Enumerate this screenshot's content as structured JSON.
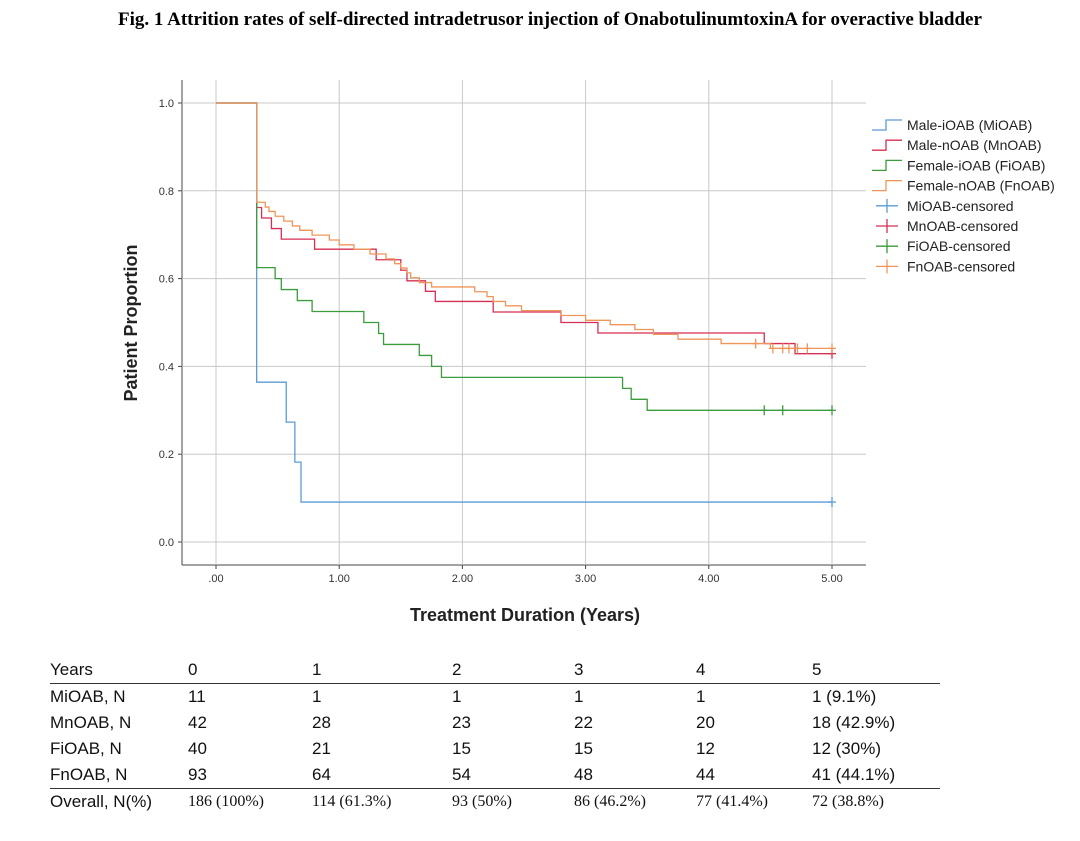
{
  "figure": {
    "title": "Fig. 1 Attrition rates of self-directed intradetrusor injection of OnabotulinumtoxinA for overactive bladder"
  },
  "chart_data": {
    "type": "line",
    "step": true,
    "title": "Fig. 1 Attrition rates of self-directed intradetrusor injection of OnabotulinumtoxinA for overactive bladder",
    "xlabel": "Treatment Duration (Years)",
    "ylabel": "Patient Proportion",
    "xlim": [
      0,
      5
    ],
    "ylim": [
      0,
      1
    ],
    "x_ticks": [
      0,
      1,
      2,
      3,
      4,
      5
    ],
    "x_tick_labels": [
      ".00",
      "1.00",
      "2.00",
      "3.00",
      "4.00",
      "5.00"
    ],
    "y_ticks": [
      0,
      0.2,
      0.4,
      0.6,
      0.8,
      1.0
    ],
    "y_tick_labels": [
      "0.0",
      "0.2",
      "0.4",
      "0.6",
      "0.8",
      "1.0"
    ],
    "grid": true,
    "legend_position": "right",
    "series": [
      {
        "name": "Male-iOAB (MiOAB)",
        "color": "#5b9bd5",
        "censor_label": "MiOAB-censored",
        "points": [
          [
            0,
            1.0
          ],
          [
            0.33,
            0.364
          ],
          [
            0.57,
            0.273
          ],
          [
            0.64,
            0.182
          ],
          [
            0.69,
            0.091
          ],
          [
            5.0,
            0.091
          ]
        ],
        "censored": [
          [
            5.0,
            0.091
          ]
        ]
      },
      {
        "name": "Male-nOAB (MnOAB)",
        "color": "#d62f55",
        "censor_label": "MnOAB-censored",
        "points": [
          [
            0,
            1.0
          ],
          [
            0.33,
            0.762
          ],
          [
            0.37,
            0.738
          ],
          [
            0.45,
            0.714
          ],
          [
            0.53,
            0.69
          ],
          [
            0.8,
            0.667
          ],
          [
            1.3,
            0.643
          ],
          [
            1.5,
            0.619
          ],
          [
            1.55,
            0.595
          ],
          [
            1.7,
            0.571
          ],
          [
            1.78,
            0.548
          ],
          [
            2.25,
            0.524
          ],
          [
            2.8,
            0.5
          ],
          [
            3.1,
            0.476
          ],
          [
            4.45,
            0.452
          ],
          [
            4.7,
            0.429
          ],
          [
            5.0,
            0.429
          ]
        ],
        "censored": [
          [
            5.0,
            0.429
          ]
        ]
      },
      {
        "name": "Female-iOAB (FiOAB)",
        "color": "#3a9c3a",
        "censor_label": "FiOAB-censored",
        "points": [
          [
            0,
            1.0
          ],
          [
            0.33,
            0.625
          ],
          [
            0.48,
            0.6
          ],
          [
            0.53,
            0.575
          ],
          [
            0.66,
            0.55
          ],
          [
            0.78,
            0.525
          ],
          [
            1.2,
            0.5
          ],
          [
            1.32,
            0.475
          ],
          [
            1.36,
            0.45
          ],
          [
            1.65,
            0.425
          ],
          [
            1.75,
            0.4
          ],
          [
            1.83,
            0.375
          ],
          [
            3.3,
            0.35
          ],
          [
            3.37,
            0.325
          ],
          [
            3.5,
            0.3
          ],
          [
            5.0,
            0.3
          ]
        ],
        "censored": [
          [
            4.45,
            0.3
          ],
          [
            4.6,
            0.3
          ],
          [
            5.0,
            0.3
          ]
        ]
      },
      {
        "name": "Female-nOAB (FnOAB)",
        "color": "#f0955a",
        "censor_label": "FnOAB-censored",
        "points": [
          [
            0,
            1.0
          ],
          [
            0.33,
            0.774
          ],
          [
            0.4,
            0.763
          ],
          [
            0.43,
            0.753
          ],
          [
            0.48,
            0.742
          ],
          [
            0.55,
            0.731
          ],
          [
            0.62,
            0.72
          ],
          [
            0.68,
            0.71
          ],
          [
            0.78,
            0.699
          ],
          [
            0.92,
            0.688
          ],
          [
            1.0,
            0.677
          ],
          [
            1.12,
            0.667
          ],
          [
            1.25,
            0.656
          ],
          [
            1.38,
            0.645
          ],
          [
            1.45,
            0.634
          ],
          [
            1.5,
            0.624
          ],
          [
            1.55,
            0.613
          ],
          [
            1.58,
            0.602
          ],
          [
            1.65,
            0.591
          ],
          [
            1.75,
            0.581
          ],
          [
            2.1,
            0.57
          ],
          [
            2.2,
            0.559
          ],
          [
            2.25,
            0.548
          ],
          [
            2.35,
            0.538
          ],
          [
            2.48,
            0.527
          ],
          [
            2.8,
            0.516
          ],
          [
            3.0,
            0.505
          ],
          [
            3.2,
            0.495
          ],
          [
            3.4,
            0.484
          ],
          [
            3.55,
            0.473
          ],
          [
            3.75,
            0.462
          ],
          [
            4.1,
            0.452
          ],
          [
            4.5,
            0.441
          ],
          [
            5.0,
            0.441
          ]
        ],
        "censored": [
          [
            4.38,
            0.452
          ],
          [
            4.52,
            0.441
          ],
          [
            4.6,
            0.441
          ],
          [
            4.65,
            0.441
          ],
          [
            4.72,
            0.441
          ],
          [
            4.8,
            0.441
          ],
          [
            5.0,
            0.441
          ]
        ]
      }
    ]
  },
  "table": {
    "header": [
      "Years",
      "0",
      "1",
      "2",
      "3",
      "4",
      "5"
    ],
    "rows": [
      [
        "MiOAB, N",
        "11",
        "1",
        "1",
        "1",
        "1",
        "1 (9.1%)"
      ],
      [
        "MnOAB, N",
        "42",
        "28",
        "23",
        "22",
        "20",
        "18 (42.9%)"
      ],
      [
        "FiOAB, N",
        "40",
        "21",
        "15",
        "15",
        "12",
        "12 (30%)"
      ],
      [
        "FnOAB, N",
        "93",
        "64",
        "54",
        "48",
        "44",
        "41 (44.1%)"
      ]
    ],
    "overall": [
      "Overall, N(%)",
      "186 (100%)",
      "114 (61.3%)",
      "93 (50%)",
      "86 (46.2%)",
      "77 (41.4%)",
      "72 (38.8%)"
    ]
  }
}
